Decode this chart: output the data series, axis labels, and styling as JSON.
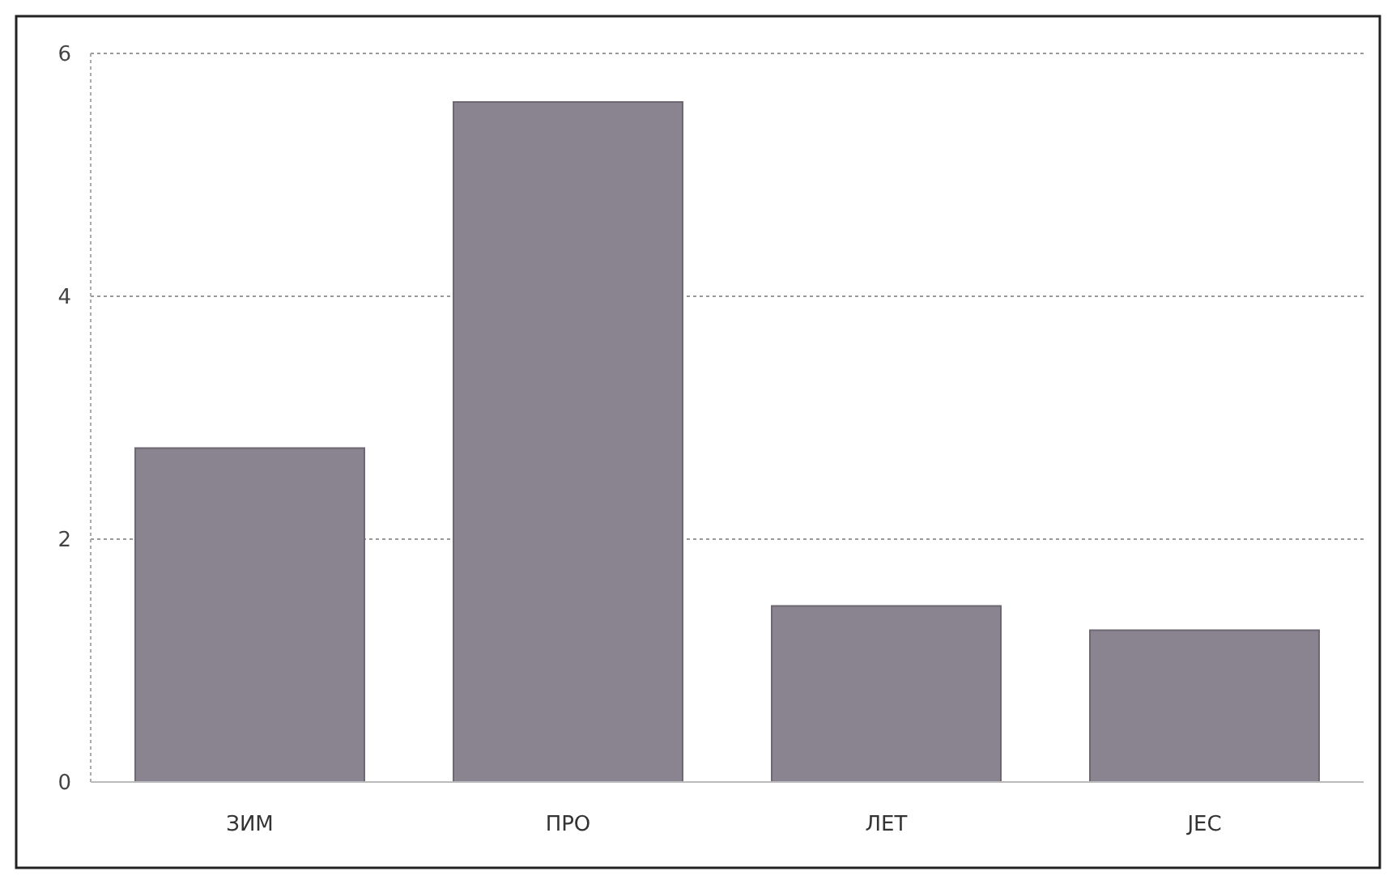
{
  "chart_data": {
    "type": "bar",
    "categories": [
      "ЗИМ",
      "ПРО",
      "ЛЕТ",
      "ЈЕС"
    ],
    "values": [
      2.75,
      5.6,
      1.45,
      1.25
    ],
    "color": "#8a8490",
    "ylim": [
      0,
      6
    ],
    "yticks": [
      0,
      2,
      4,
      6
    ],
    "grid": "y"
  }
}
